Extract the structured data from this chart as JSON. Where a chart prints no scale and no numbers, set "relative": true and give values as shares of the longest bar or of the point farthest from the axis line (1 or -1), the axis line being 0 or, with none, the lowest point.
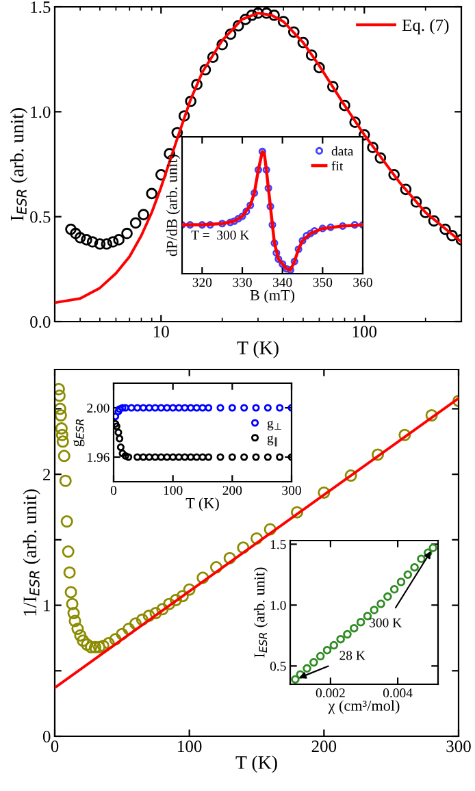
{
  "chart_data": [
    {
      "type": "scatter",
      "xlabel": "T (K)",
      "ylabel": "I$_{ESR}$ (arb. unit)",
      "log": "x",
      "xlim": [
        3,
        300
      ],
      "xticks": [
        10,
        100
      ],
      "ylim": [
        0,
        1.5
      ],
      "yticks": [
        {
          "value": 0,
          "label": "0.0"
        },
        {
          "value": 0.5,
          "label": "0.5"
        },
        {
          "value": 1.0,
          "label": "1.0"
        },
        {
          "value": 1.5,
          "label": "1.5"
        }
      ],
      "legend": "top right",
      "series": [
        {
          "color": "#000000",
          "marker": "circle",
          "x": [
            3.6,
            3.8,
            4.0,
            4.3,
            4.6,
            5.0,
            5.4,
            5.8,
            6.2,
            6.8,
            7.5,
            8.2,
            9,
            10,
            11,
            12,
            13,
            14,
            15,
            16.5,
            18,
            20,
            22,
            24,
            26,
            28,
            30,
            33,
            36,
            40,
            45,
            50,
            55,
            60,
            70,
            80,
            90,
            100,
            110,
            120,
            140,
            160,
            180,
            200,
            220,
            250,
            270,
            300
          ],
          "values": [
            0.44,
            0.42,
            0.4,
            0.39,
            0.38,
            0.37,
            0.37,
            0.38,
            0.39,
            0.42,
            0.47,
            0.51,
            0.61,
            0.7,
            0.8,
            0.9,
            0.98,
            1.05,
            1.13,
            1.2,
            1.26,
            1.32,
            1.37,
            1.41,
            1.44,
            1.46,
            1.47,
            1.47,
            1.46,
            1.43,
            1.38,
            1.33,
            1.27,
            1.21,
            1.12,
            1.03,
            0.95,
            0.89,
            0.83,
            0.78,
            0.7,
            0.63,
            0.57,
            0.52,
            0.48,
            0.44,
            0.41,
            0.39
          ]
        },
        {
          "type": "line",
          "name": "Eq. (7)",
          "color": "#ff0000",
          "x": [
            3,
            4,
            5,
            6,
            7,
            8,
            9,
            10,
            12,
            14,
            16,
            20,
            25,
            30,
            35,
            40,
            50,
            60,
            80,
            100,
            150,
            200,
            300
          ],
          "values": [
            0.09,
            0.11,
            0.16,
            0.23,
            0.31,
            0.41,
            0.52,
            0.64,
            0.87,
            1.06,
            1.19,
            1.34,
            1.44,
            1.47,
            1.46,
            1.43,
            1.33,
            1.22,
            1.03,
            0.89,
            0.66,
            0.52,
            0.38
          ]
        }
      ]
    },
    {
      "type": "scatter",
      "relative": true,
      "xlabel": "B (mT)",
      "ylabel": "dP/dB (arb. unit)",
      "xlim": [
        315,
        360
      ],
      "xticks": [
        320,
        330,
        340,
        350,
        360
      ],
      "legend": "top right",
      "annotations": [
        "T =  300 K"
      ],
      "series": [
        {
          "name": "data",
          "color": "#4040ff",
          "marker": "circle",
          "x": [
            315,
            317,
            320,
            322,
            325,
            327,
            328,
            329,
            330,
            331,
            332,
            333,
            334,
            335,
            336,
            336.5,
            337,
            337.5,
            338,
            338.5,
            339,
            340,
            341,
            342,
            343,
            344,
            345,
            346,
            347,
            348,
            350,
            352,
            355,
            358,
            360
          ],
          "values": [
            0.4,
            0.4,
            0.4,
            0.4,
            0.41,
            0.42,
            0.43,
            0.45,
            0.47,
            0.51,
            0.56,
            0.66,
            0.85,
            1.0,
            0.85,
            0.7,
            0.55,
            0.4,
            0.25,
            0.17,
            0.12,
            0.08,
            0.04,
            0.03,
            0.1,
            0.2,
            0.27,
            0.31,
            0.33,
            0.35,
            0.37,
            0.38,
            0.39,
            0.4,
            0.4
          ]
        },
        {
          "type": "line",
          "name": "fit",
          "color": "#ff0000",
          "x": [
            315,
            320,
            325,
            328,
            330,
            332,
            333,
            334,
            335,
            335.5,
            336,
            337,
            338,
            339,
            340,
            341,
            342,
            343,
            344,
            345,
            347,
            350,
            355,
            360
          ],
          "values": [
            0.4,
            0.4,
            0.41,
            0.43,
            0.47,
            0.56,
            0.66,
            0.85,
            1.0,
            0.98,
            0.85,
            0.55,
            0.25,
            0.12,
            0.08,
            0.04,
            0.03,
            0.1,
            0.2,
            0.27,
            0.33,
            0.37,
            0.39,
            0.4
          ]
        }
      ]
    },
    {
      "type": "scatter",
      "xlabel": "T (K)",
      "ylabel": "1/I$_{ESR}$ (arb. unit)",
      "xlim": [
        0,
        300
      ],
      "xticks": [
        0,
        100,
        200,
        300
      ],
      "ylim": [
        0,
        2.8
      ],
      "yticks": [
        0,
        {
          "value": 0.5,
          "label": null
        },
        1,
        {
          "value": 1.5,
          "label": null
        },
        2,
        {
          "value": 2.5,
          "label": null
        }
      ],
      "series": [
        {
          "color": "#8b8b00",
          "marker": "circle",
          "x": [
            3,
            3.5,
            4,
            4.5,
            5,
            5.5,
            6,
            7,
            8,
            9,
            10,
            11,
            12,
            13,
            14,
            15,
            17,
            19,
            21,
            24,
            27,
            30,
            33,
            36,
            40,
            45,
            50,
            55,
            60,
            65,
            70,
            75,
            80,
            85,
            90,
            95,
            100,
            110,
            120,
            130,
            140,
            150,
            160,
            180,
            200,
            220,
            240,
            260,
            280,
            300
          ],
          "values": [
            2.65,
            2.6,
            2.5,
            2.45,
            2.35,
            2.3,
            2.25,
            2.14,
            1.95,
            1.64,
            1.41,
            1.25,
            1.1,
            1.01,
            0.94,
            0.88,
            0.82,
            0.77,
            0.73,
            0.7,
            0.68,
            0.68,
            0.68,
            0.69,
            0.71,
            0.74,
            0.78,
            0.82,
            0.86,
            0.89,
            0.92,
            0.94,
            0.97,
            1.01,
            1.04,
            1.07,
            1.12,
            1.21,
            1.29,
            1.36,
            1.44,
            1.51,
            1.58,
            1.71,
            1.86,
            1.99,
            2.15,
            2.3,
            2.45,
            2.56
          ]
        },
        {
          "type": "line",
          "color": "#ff0000",
          "x": [
            0,
            300
          ],
          "values": [
            0.37,
            2.58
          ]
        }
      ]
    },
    {
      "type": "scatter",
      "legend": "right",
      "xlabel": "T (K)",
      "ylabel": "g$_{ESR}$",
      "xlim": [
        0,
        300
      ],
      "xticks": [
        0,
        100,
        200,
        300
      ],
      "ylim": [
        1.94,
        2.02
      ],
      "yticks": [
        {
          "value": 1.96,
          "label": "1.96"
        },
        {
          "value": 2.0,
          "label": "2.00"
        }
      ],
      "series": [
        {
          "name": "g$_{⊥}$",
          "color": "#0000ff",
          "marker": "circle",
          "x": [
            3,
            8,
            10,
            15,
            20,
            30,
            40,
            50,
            60,
            70,
            80,
            90,
            100,
            110,
            120,
            130,
            140,
            150,
            160,
            180,
            200,
            220,
            240,
            260,
            280,
            300
          ],
          "values": [
            1.993,
            1.997,
            1.999,
            2.0,
            2.0,
            2.0,
            2.0,
            2.0,
            2.0,
            2.0,
            2.0,
            2.0,
            2.0,
            2.0,
            2.0,
            2.0,
            2.0,
            2.0,
            2.0,
            2.0,
            2.0,
            2.0,
            2.0,
            2.0,
            2.0,
            2.0
          ]
        },
        {
          "name": "g$_{∥}$",
          "color": "#000000",
          "marker": "circle",
          "x": [
            3,
            5,
            8,
            10,
            12,
            15,
            20,
            25,
            40,
            50,
            60,
            70,
            80,
            90,
            100,
            110,
            120,
            130,
            140,
            150,
            160,
            180,
            200,
            220,
            240,
            260,
            280,
            300
          ],
          "values": [
            1.987,
            1.985,
            1.98,
            1.975,
            1.968,
            1.963,
            1.961,
            1.96,
            1.96,
            1.96,
            1.96,
            1.96,
            1.96,
            1.96,
            1.96,
            1.96,
            1.96,
            1.96,
            1.96,
            1.96,
            1.96,
            1.96,
            1.96,
            1.96,
            1.96,
            1.96,
            1.96,
            1.96
          ]
        }
      ]
    },
    {
      "type": "scatter",
      "xlabel": "χ (cm³/mol)",
      "ylabel": "I$_{ESR}$ (arb. unit)",
      "xlim": [
        0.0008,
        0.0052
      ],
      "xticks": [
        0.002,
        0.004
      ],
      "ylim": [
        0.35,
        1.53
      ],
      "yticks": [
        {
          "value": 0.5,
          "label": "0.5"
        },
        {
          "value": 1.0,
          "label": "1.0"
        },
        {
          "value": 1.5,
          "label": "1.5"
        }
      ],
      "annotations": [
        {
          "text": "300 K",
          "x": 0.00505,
          "y": 1.47
        },
        {
          "text": "28 K",
          "x": 0.00095,
          "y": 0.39
        }
      ],
      "series": [
        {
          "color": "#2e8b22",
          "marker": "circle",
          "x": [
            0.00095,
            0.0011,
            0.0013,
            0.0015,
            0.0017,
            0.0019,
            0.0021,
            0.0023,
            0.0025,
            0.0027,
            0.0029,
            0.0031,
            0.0033,
            0.0035,
            0.0037,
            0.0039,
            0.0041,
            0.0043,
            0.0045,
            0.0047,
            0.0049,
            0.00505
          ],
          "values": [
            0.39,
            0.43,
            0.48,
            0.53,
            0.58,
            0.63,
            0.67,
            0.72,
            0.76,
            0.81,
            0.86,
            0.91,
            0.96,
            1.01,
            1.07,
            1.13,
            1.19,
            1.25,
            1.31,
            1.38,
            1.43,
            1.47
          ]
        }
      ]
    }
  ]
}
